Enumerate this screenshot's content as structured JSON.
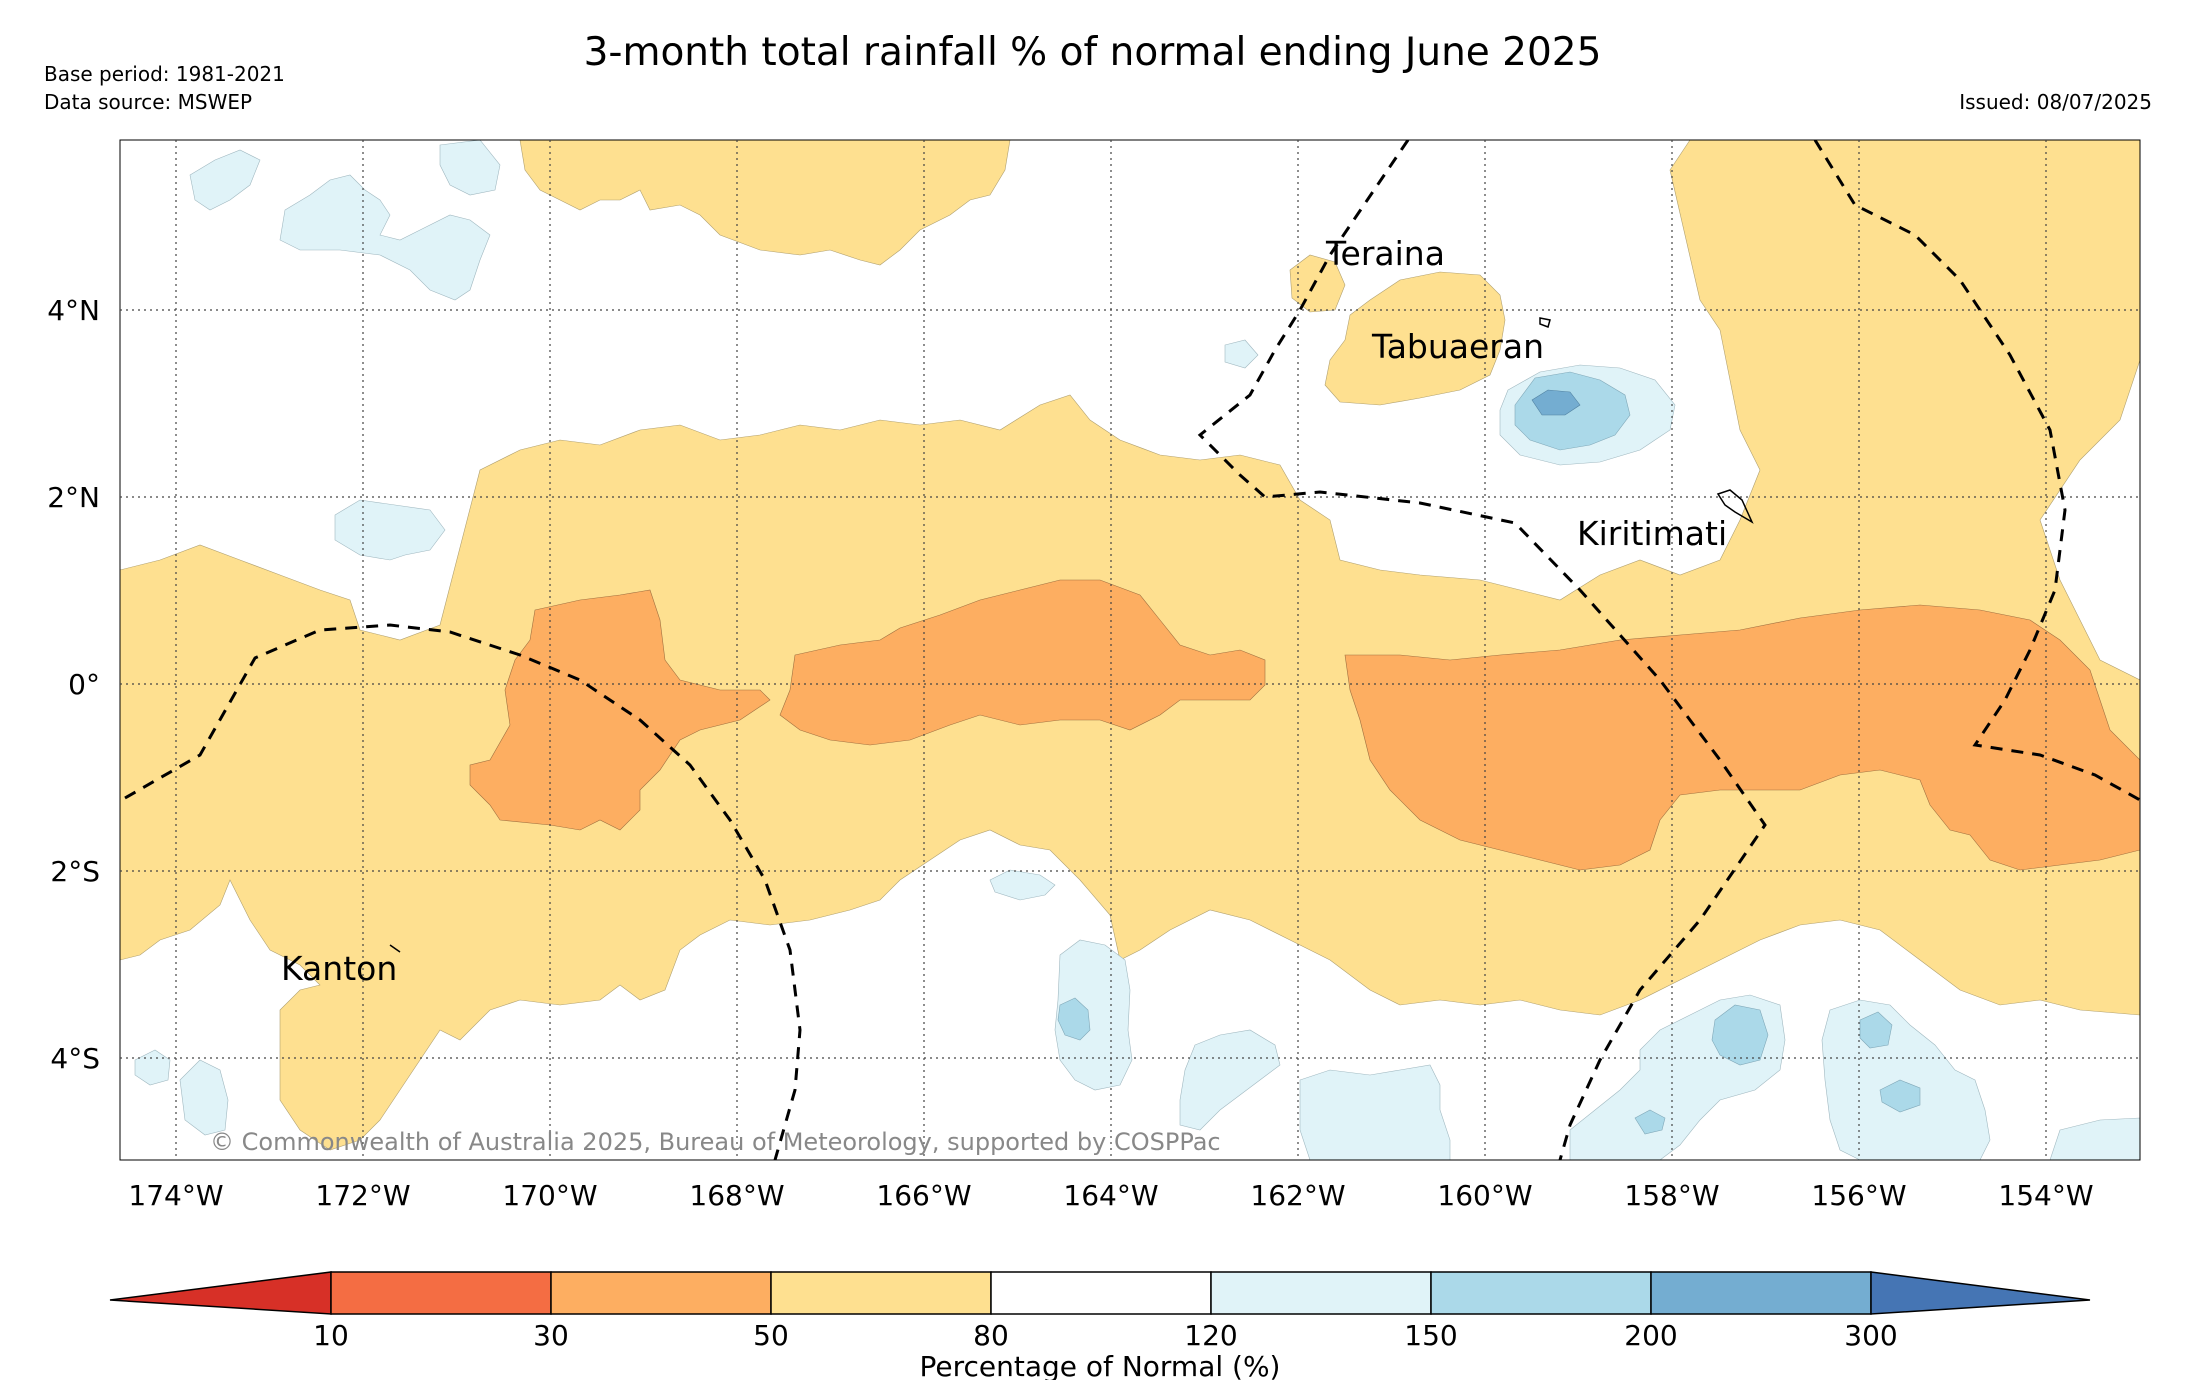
{
  "header": {
    "title": "3-month total rainfall % of normal ending June 2025",
    "base_period": "Base period: 1981-2021",
    "data_source": "Data source: MSWEP",
    "issued": "Issued: 08/07/2025"
  },
  "map": {
    "longitude_labels": [
      "174°W",
      "172°W",
      "170°W",
      "168°W",
      "166°W",
      "164°W",
      "162°W",
      "160°W",
      "158°W",
      "156°W",
      "154°W"
    ],
    "latitude_labels": [
      "4°N",
      "2°N",
      "0°",
      "2°S",
      "4°S"
    ],
    "places": {
      "teraina": "Teraina",
      "tabuaeran": "Tabuaeran",
      "kiritimati": "Kiritimati",
      "kanton": "Kanton"
    },
    "copyright": "© Commonwealth of Australia 2025, Bureau of Meteorology, supported by COSPPac",
    "category_colors": {
      "below_10": "#d73027",
      "10_30": "#f46d43",
      "30_50": "#fdae61",
      "50_80": "#fee090",
      "80_120": "#ffffff",
      "120_150": "#e0f3f8",
      "150_200": "#abd9e9",
      "200_300": "#74add1",
      "above_300": "#4575b4"
    }
  },
  "colorbar": {
    "ticks": [
      "10",
      "30",
      "50",
      "80",
      "120",
      "150",
      "200",
      "300"
    ],
    "label": "Percentage of Normal (%)"
  }
}
